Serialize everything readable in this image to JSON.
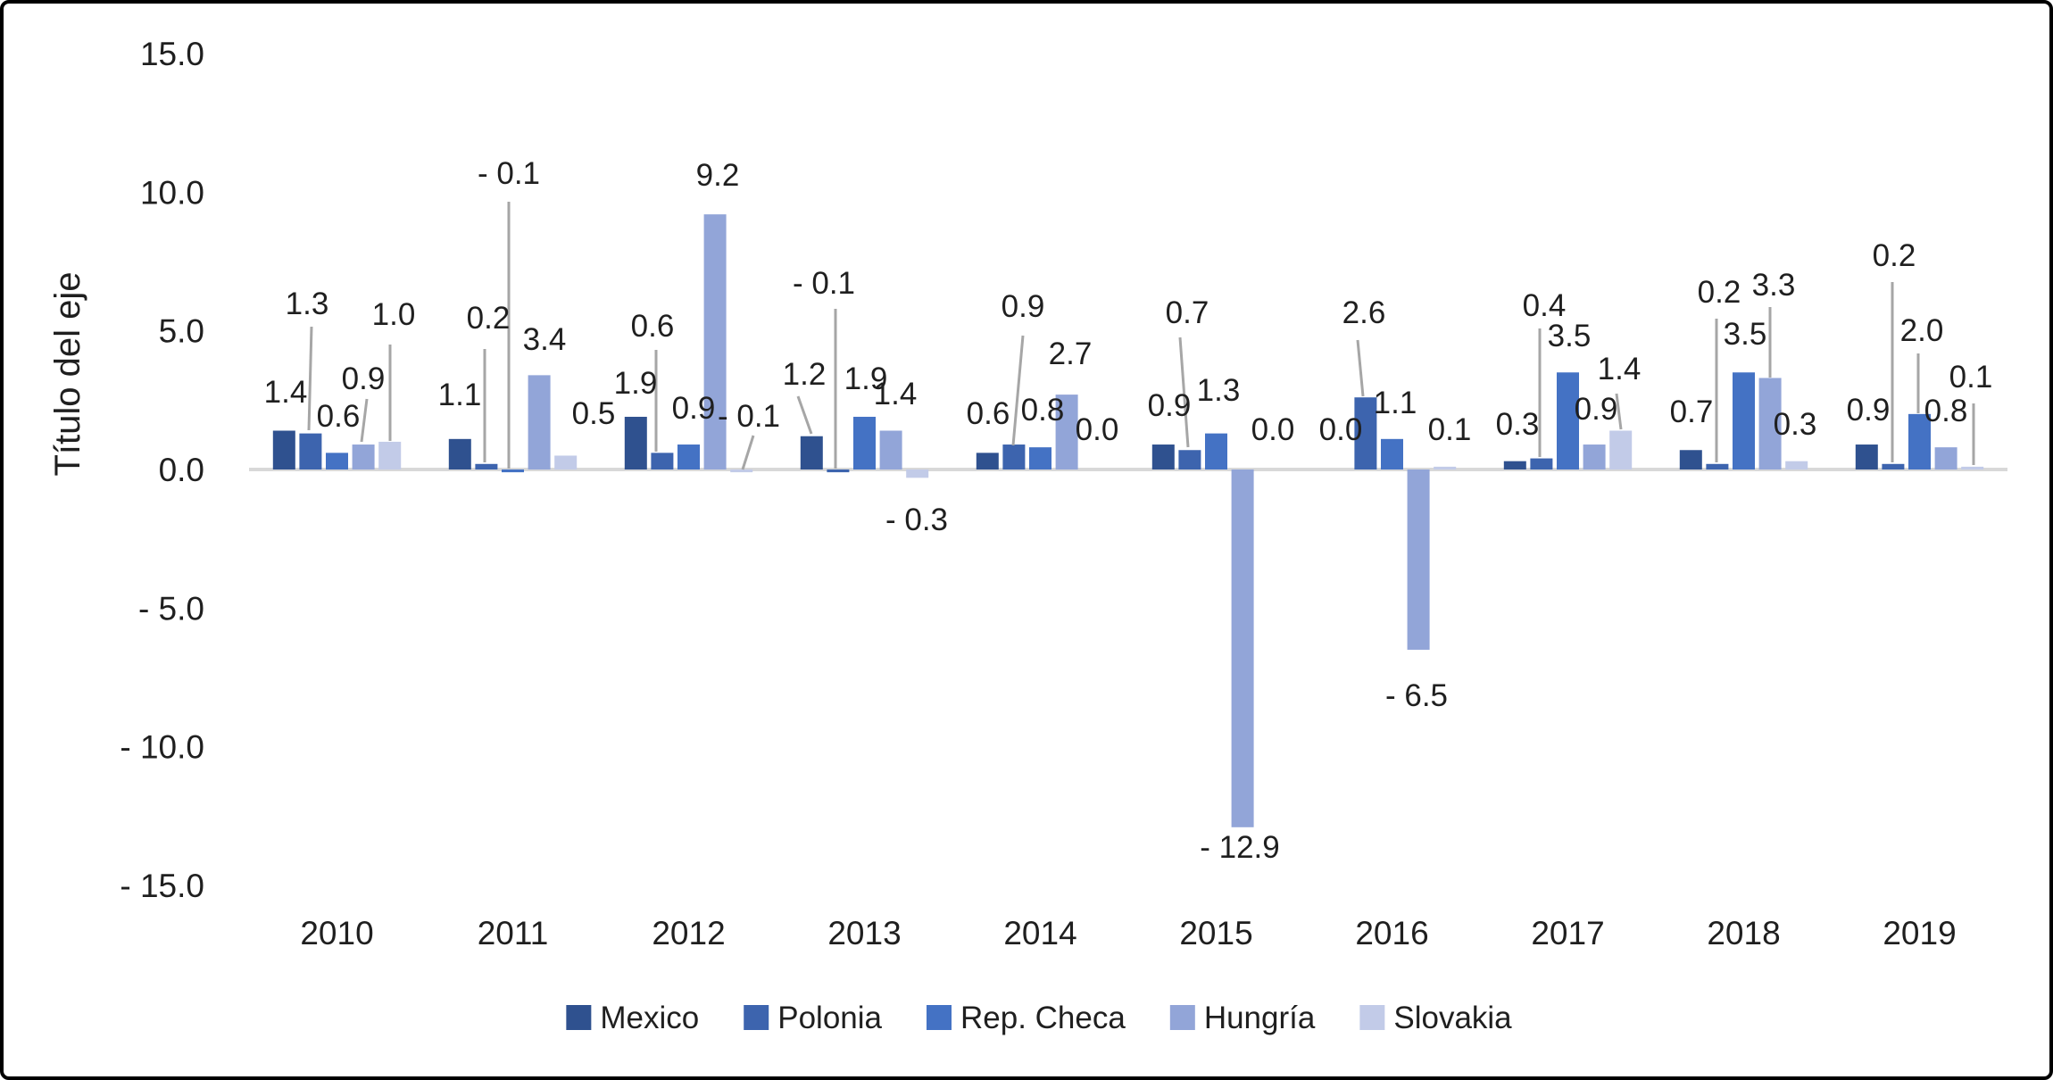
{
  "chart_data": {
    "type": "bar",
    "title": "",
    "ylabel": "Título del eje",
    "categories": [
      "2010",
      "2011",
      "2012",
      "2013",
      "2014",
      "2015",
      "2016",
      "2017",
      "2018",
      "2019"
    ],
    "series": [
      {
        "name": "Mexico",
        "color": "#2F518F",
        "values": [
          1.4,
          1.1,
          1.9,
          1.2,
          0.6,
          0.9,
          0.0,
          0.3,
          0.7,
          0.9
        ]
      },
      {
        "name": "Polonia",
        "color": "#3D64AE",
        "values": [
          1.3,
          0.2,
          0.6,
          -0.1,
          0.9,
          0.7,
          2.6,
          0.4,
          0.2,
          0.2
        ]
      },
      {
        "name": "Rep. Checa",
        "color": "#4472C4",
        "values": [
          0.6,
          -0.1,
          0.9,
          1.9,
          0.8,
          1.3,
          1.1,
          3.5,
          3.5,
          2.0
        ]
      },
      {
        "name": "Hungría",
        "color": "#92A5D8",
        "values": [
          0.9,
          3.4,
          9.2,
          1.4,
          2.7,
          -12.9,
          -6.5,
          0.9,
          3.3,
          0.8
        ]
      },
      {
        "name": "Slovakia",
        "color": "#C2CBE8",
        "values": [
          1.0,
          0.5,
          -0.1,
          -0.3,
          0.0,
          0.0,
          0.1,
          1.4,
          0.3,
          0.1
        ]
      }
    ],
    "ylim": [
      -15,
      15
    ],
    "ytick_step": 5,
    "yticks": [
      15.0,
      10.0,
      5.0,
      0.0,
      -5.0,
      -10.0,
      -15.0
    ],
    "ytick_labels": [
      "15.0",
      "10.0",
      "5.0",
      "0.0",
      "- 5.0",
      "- 10.0",
      "- 15.0"
    ],
    "grid": false,
    "data_labels": true,
    "legend_position": "bottom",
    "axis_color": "#D8D8D8",
    "leader_line_color": "#A6A6A6",
    "text_color": "#1F1F1F",
    "background_color": "#FFFFFF",
    "border_color": "#000000"
  }
}
